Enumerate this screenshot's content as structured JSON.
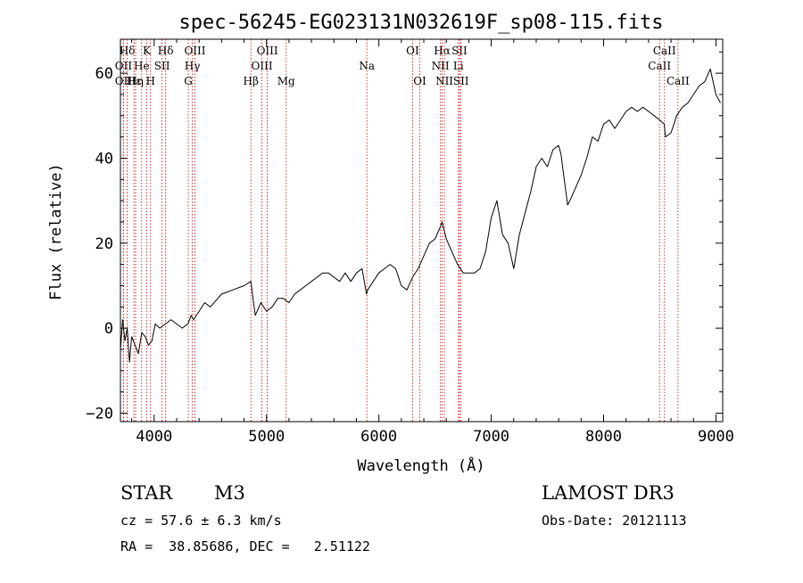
{
  "chart_data": {
    "type": "line",
    "title": "spec-56245-EG023131N032619F_sp08-115.fits",
    "xlabel": "Wavelength (Å)",
    "ylabel": "Flux (relative)",
    "xlim": [
      3700,
      9060
    ],
    "ylim": [
      -22,
      68
    ],
    "xticks": [
      4000,
      5000,
      6000,
      7000,
      8000,
      9000
    ],
    "xtick_labels": [
      "4000",
      "5000",
      "6000",
      "7000",
      "8000",
      "9000"
    ],
    "yticks": [
      -20,
      0,
      20,
      40,
      60
    ],
    "ytick_labels": [
      "−20",
      "0",
      "20",
      "40",
      "60"
    ],
    "grid": false,
    "line_color": "#000000",
    "marker_color": "#cc0000",
    "series": [
      {
        "x": [
          3700,
          3720,
          3740,
          3760,
          3780,
          3800,
          3830,
          3860,
          3890,
          3920,
          3950,
          3980,
          4010,
          4050,
          4100,
          4150,
          4200,
          4250,
          4300,
          4330,
          4350,
          4400,
          4450,
          4500,
          4600,
          4700,
          4800,
          4860,
          4900,
          4950,
          5000,
          5050,
          5100,
          5150,
          5200,
          5250,
          5300,
          5350,
          5400,
          5450,
          5500,
          5550,
          5600,
          5650,
          5700,
          5750,
          5800,
          5850,
          5890,
          5900,
          5950,
          6000,
          6050,
          6100,
          6150,
          6200,
          6250,
          6300,
          6350,
          6400,
          6450,
          6500,
          6550,
          6563,
          6600,
          6650,
          6700,
          6750,
          6800,
          6850,
          6900,
          6950,
          7000,
          7050,
          7100,
          7150,
          7200,
          7250,
          7300,
          7350,
          7400,
          7450,
          7500,
          7550,
          7600,
          7620,
          7650,
          7680,
          7700,
          7750,
          7800,
          7850,
          7900,
          7950,
          8000,
          8050,
          8100,
          8150,
          8200,
          8250,
          8300,
          8350,
          8400,
          8450,
          8500,
          8540,
          8550,
          8600,
          8650,
          8700,
          8750,
          8800,
          8850,
          8900,
          8950,
          9000,
          9040
        ],
        "y": [
          -5,
          2,
          -3,
          0,
          -8,
          -2,
          -4,
          -6,
          -1,
          -2,
          -4,
          -3,
          1,
          0,
          1,
          2,
          1,
          0,
          1,
          3,
          2,
          4,
          6,
          5,
          8,
          9,
          10,
          11,
          3,
          6,
          4,
          5,
          7,
          7,
          6,
          8,
          9,
          10,
          11,
          12,
          13,
          13,
          12,
          11,
          13,
          11,
          13,
          14,
          8,
          9,
          11,
          13,
          14,
          15,
          14,
          10,
          9,
          12,
          14,
          17,
          20,
          21,
          24,
          25,
          21,
          18,
          15,
          13,
          13,
          13,
          14,
          18,
          26,
          30,
          22,
          20,
          14,
          22,
          27,
          32,
          38,
          40,
          38,
          42,
          43,
          41,
          35,
          29,
          30,
          33,
          36,
          40,
          45,
          44,
          48,
          49,
          47,
          49,
          51,
          52,
          51,
          52,
          51,
          50,
          49,
          48,
          45,
          46,
          50,
          52,
          53,
          55,
          57,
          58,
          61,
          55,
          53
        ]
      }
    ],
    "spectral_lines": [
      {
        "label": "Hδ",
        "x": 3760,
        "row": 1
      },
      {
        "label": "K",
        "x": 3934,
        "row": 1
      },
      {
        "label": "Hδ",
        "x": 4102,
        "row": 1
      },
      {
        "label": "OIII",
        "x": 4363,
        "row": 1
      },
      {
        "label": "OIII",
        "x": 5007,
        "row": 1
      },
      {
        "label": "OI",
        "x": 6300,
        "row": 1
      },
      {
        "label": "Hα",
        "x": 6563,
        "row": 1
      },
      {
        "label": "SII",
        "x": 6717,
        "row": 1
      },
      {
        "label": "CaII",
        "x": 8542,
        "row": 1
      },
      {
        "label": "OII",
        "x": 3727,
        "row": 2
      },
      {
        "label": "He",
        "x": 3889,
        "row": 2
      },
      {
        "label": "SII",
        "x": 4070,
        "row": 2
      },
      {
        "label": "Hγ",
        "x": 4340,
        "row": 2
      },
      {
        "label": "OIII",
        "x": 4959,
        "row": 2
      },
      {
        "label": "Na",
        "x": 5893,
        "row": 2
      },
      {
        "label": "NII",
        "x": 6548,
        "row": 2
      },
      {
        "label": "Li",
        "x": 6708,
        "row": 2
      },
      {
        "label": "CaII",
        "x": 8498,
        "row": 2
      },
      {
        "label": "OII",
        "x": 3727,
        "row": 3
      },
      {
        "label": "Hε",
        "x": 3820,
        "row": 3
      },
      {
        "label": "Hη",
        "x": 3835,
        "row": 3
      },
      {
        "label": "H",
        "x": 3968,
        "row": 3
      },
      {
        "label": "G",
        "x": 4304,
        "row": 3
      },
      {
        "label": "Hβ",
        "x": 4861,
        "row": 3
      },
      {
        "label": "Mg",
        "x": 5175,
        "row": 3
      },
      {
        "label": "OI",
        "x": 6364,
        "row": 3
      },
      {
        "label": "NII",
        "x": 6583,
        "row": 3
      },
      {
        "label": "SII",
        "x": 6731,
        "row": 3
      },
      {
        "label": "CaII",
        "x": 8662,
        "row": 3
      }
    ]
  },
  "info": {
    "class_label": "STAR",
    "subclass": "M3",
    "survey": "LAMOST DR3",
    "redshift_line": "cz = 57.6 ± 6.3 km/s",
    "obs_date": "Obs-Date: 20121113",
    "coords": "RA =  38.85686, DEC =   2.51122"
  }
}
